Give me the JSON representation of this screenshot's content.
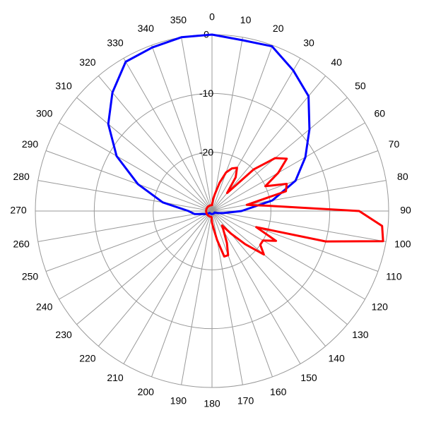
{
  "chart_data": {
    "type": "polar",
    "direction": "clockwise",
    "zero_location": "top",
    "rlim": [
      -30,
      0
    ],
    "rticks": [
      -20,
      -10,
      0
    ],
    "thetaticks": [
      0,
      10,
      20,
      30,
      40,
      50,
      60,
      70,
      80,
      90,
      100,
      110,
      120,
      130,
      140,
      150,
      160,
      170,
      180,
      190,
      200,
      210,
      220,
      230,
      240,
      250,
      260,
      270,
      280,
      290,
      300,
      310,
      320,
      330,
      340,
      350
    ],
    "grid": true,
    "series": [
      {
        "color": "#0000ff",
        "theta": [
          0,
          10,
          20,
          30,
          40,
          50,
          60,
          70,
          80,
          90,
          100,
          110,
          120,
          130,
          140,
          150,
          160,
          170,
          180,
          190,
          200,
          210,
          220,
          230,
          240,
          250,
          260,
          270,
          280,
          290,
          300,
          310,
          320,
          330,
          340,
          350
        ],
        "values": [
          0,
          -0.5,
          -0.2,
          -2.4,
          -4.5,
          -8.4,
          -11.7,
          -14.9,
          -19.6,
          -25,
          -28,
          -29,
          -29.5,
          -29.5,
          -29.5,
          -29.5,
          -29.5,
          -29.5,
          -29.5,
          -29.5,
          -29.5,
          -29.5,
          -29.5,
          -29.5,
          -29,
          -28.5,
          -27,
          -26,
          -21.5,
          -16.6,
          -11.3,
          -7,
          -3.7,
          -0.7,
          -0.4,
          0
        ]
      },
      {
        "color": "#ff0000",
        "theta": [
          0,
          5,
          10,
          15,
          20,
          25,
          30,
          35,
          40,
          45,
          50,
          55,
          60,
          65,
          70,
          75,
          80,
          85,
          90,
          95,
          100,
          105,
          110,
          115,
          120,
          125,
          130,
          135,
          140,
          145,
          150,
          155,
          160,
          165,
          170,
          175,
          180,
          185,
          190,
          195,
          200,
          205,
          210,
          215,
          220,
          225,
          230,
          235,
          240,
          245,
          250,
          255,
          260,
          265,
          270,
          275,
          280,
          285,
          290,
          295,
          300,
          305,
          310,
          315,
          320,
          325,
          330,
          335,
          340,
          345,
          350,
          355
        ],
        "values": [
          -29,
          -28,
          -27,
          -25,
          -23,
          -22,
          -21.5,
          -23,
          -26,
          -20,
          -16,
          -14.5,
          -17,
          -20,
          -16.5,
          -17,
          -24,
          -20,
          -5,
          -1,
          -0.5,
          -10,
          -22,
          -18,
          -20,
          -20,
          -18.5,
          -22,
          -25,
          -27,
          -26,
          -24,
          -22,
          -22,
          -25,
          -27,
          -28,
          -29,
          -29,
          -29,
          -29,
          -29,
          -29,
          -29,
          -29,
          -29,
          -29,
          -29,
          -29,
          -29,
          -29,
          -29,
          -29,
          -29,
          -29,
          -29,
          -29,
          -29,
          -29,
          -29,
          -29,
          -29,
          -29,
          -29,
          -29,
          -29,
          -29,
          -29,
          -29,
          -29,
          -29,
          -29
        ]
      }
    ]
  }
}
